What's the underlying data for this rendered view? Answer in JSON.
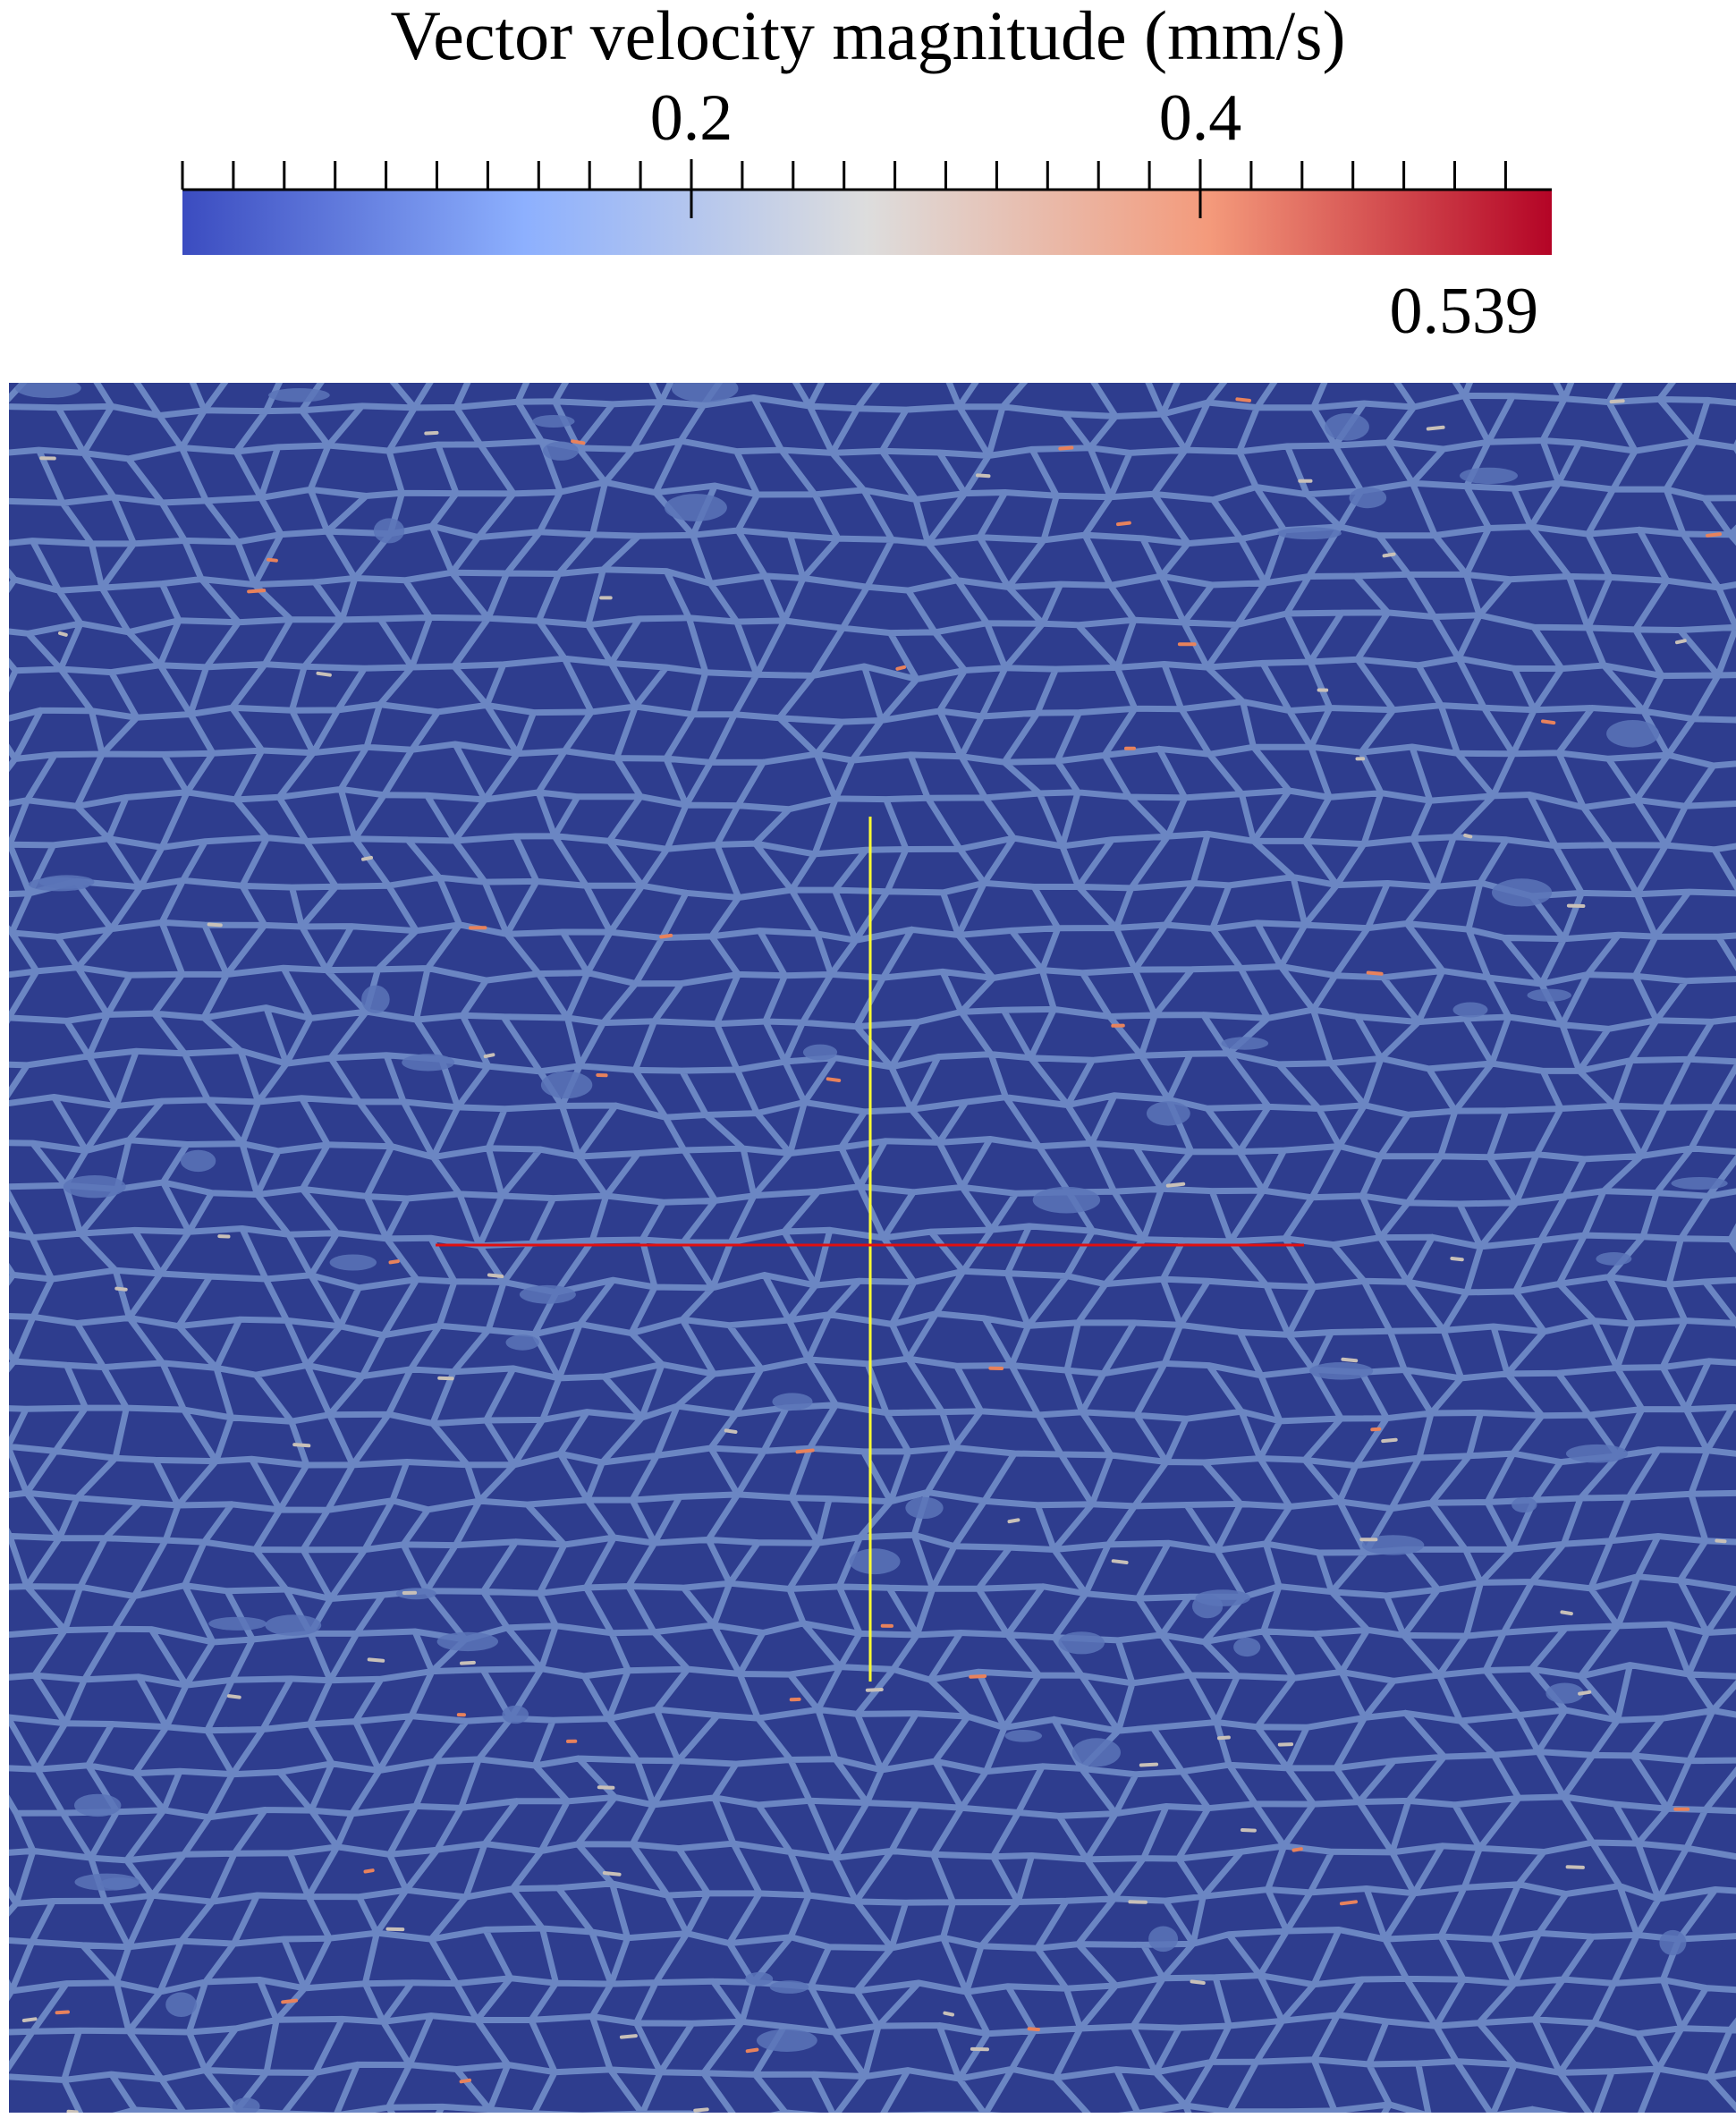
{
  "colorbar": {
    "title": "Vector velocity magnitude (mm/s)",
    "range": [
      0,
      0.539
    ],
    "max_label": "0.539",
    "major_ticks": [
      {
        "value": 0.2,
        "label": "0.2"
      },
      {
        "value": 0.4,
        "label": "0.4"
      }
    ],
    "colors": [
      "#3b4cc0",
      "#8db0fe",
      "#dddddd",
      "#f49a7b",
      "#b40426"
    ]
  },
  "field": {
    "background_color": "#2e3d8e",
    "channel_color": "#6f8ac6",
    "hot_color": "#e8825c",
    "probe_lines": {
      "vertical_color": "#ffff33",
      "horizontal_color": "#e01010"
    }
  }
}
